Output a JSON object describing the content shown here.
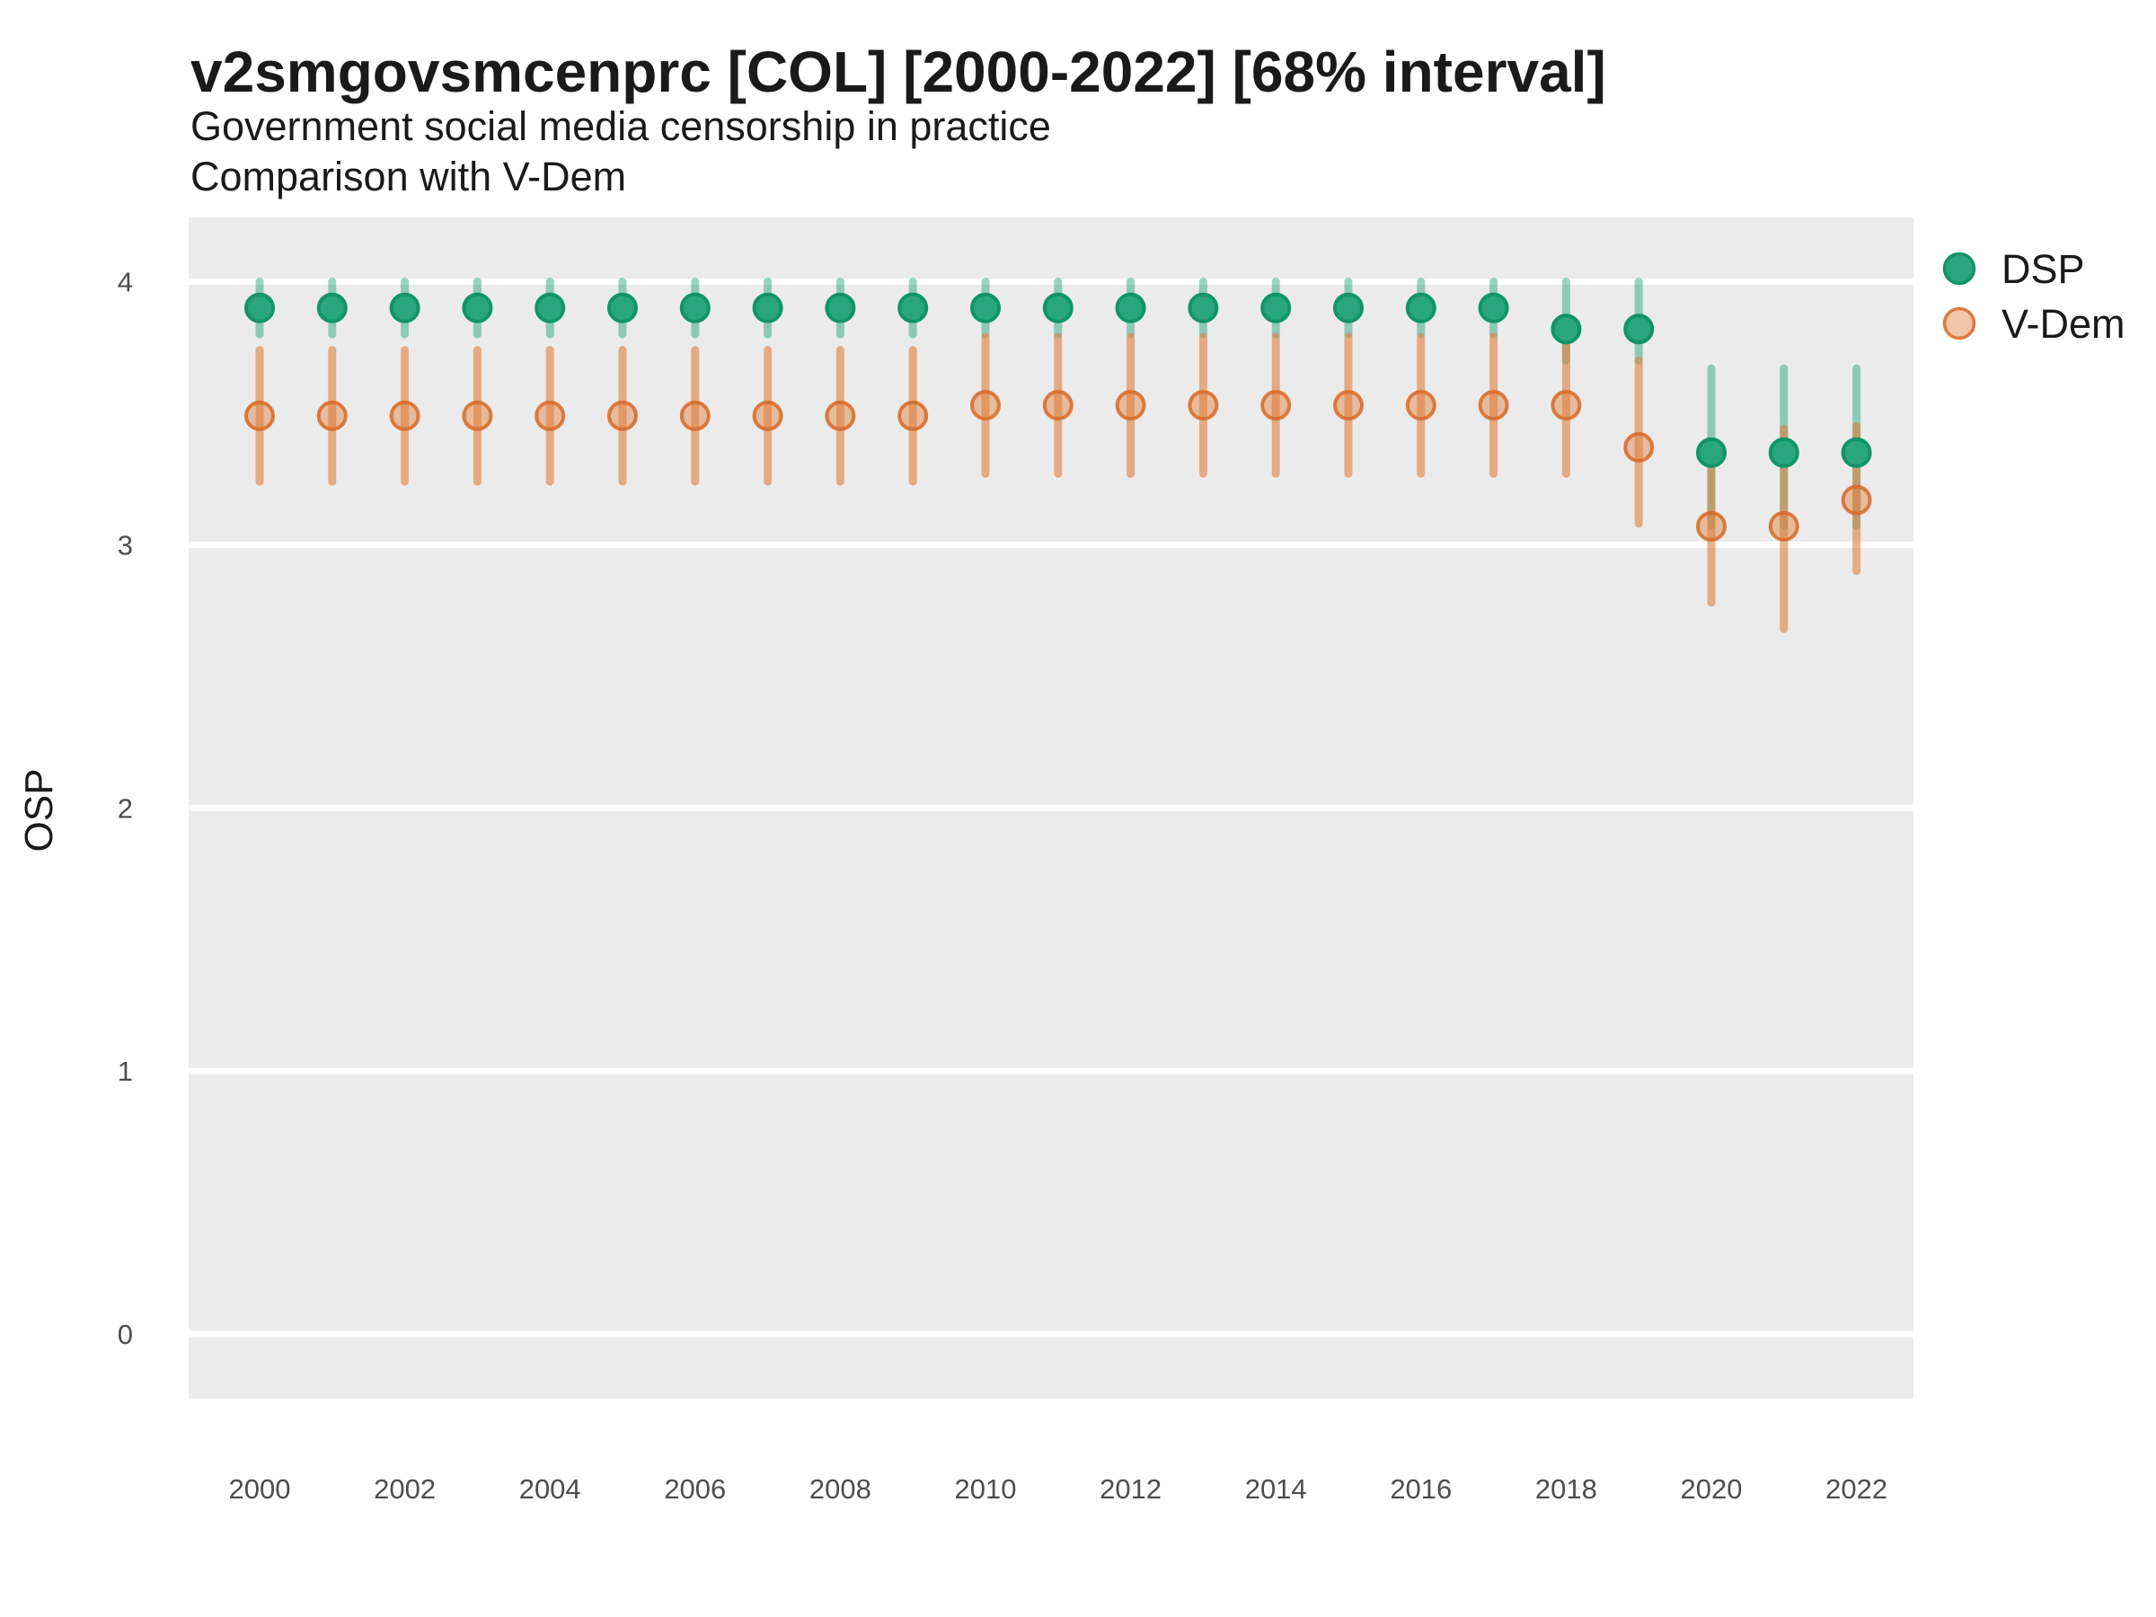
{
  "header": {
    "title": "v2smgovsmcenprc [COL] [2000-2022] [68% interval]",
    "subtitle_line1": "Government social media censorship in practice",
    "subtitle_line2": "Comparison with V-Dem"
  },
  "axes": {
    "y_label": "OSP",
    "y_ticks": [
      0,
      1,
      2,
      3,
      4
    ],
    "x_ticks": [
      2000,
      2002,
      2004,
      2006,
      2008,
      2010,
      2012,
      2014,
      2016,
      2018,
      2020,
      2022
    ]
  },
  "legend": {
    "items": [
      {
        "label": "DSP",
        "series": "DSP"
      },
      {
        "label": "V-Dem",
        "series": "V-Dem"
      }
    ]
  },
  "colors": {
    "dsp_green": "#1DA079",
    "dsp_dot_fill": "#2AA67E",
    "dsp_dot_stroke": "#0F9566",
    "vdem_orange": "#E07E3C",
    "vdem_dot_stroke": "#D86824",
    "panel_gray": "#EBEBEB",
    "gridline_white": "#FFFFFF"
  },
  "chart_data": {
    "type": "scatter",
    "subtype": "pointrange-68pct-interval",
    "title": "v2smgovsmcenprc [COL] [2000-2022] [68% interval]",
    "subtitle": "Government social media censorship in practice — Comparison with V-Dem",
    "xlabel": "",
    "ylabel": "OSP",
    "x": [
      2000,
      2001,
      2002,
      2003,
      2004,
      2005,
      2006,
      2007,
      2008,
      2009,
      2010,
      2011,
      2012,
      2013,
      2014,
      2015,
      2016,
      2017,
      2018,
      2019,
      2020,
      2021,
      2022
    ],
    "series": [
      {
        "name": "DSP",
        "values": [
          3.9,
          3.9,
          3.9,
          3.9,
          3.9,
          3.9,
          3.9,
          3.9,
          3.9,
          3.9,
          3.9,
          3.9,
          3.9,
          3.9,
          3.9,
          3.9,
          3.9,
          3.9,
          3.82,
          3.82,
          3.35,
          3.35,
          3.35
        ],
        "lower": [
          3.8,
          3.8,
          3.8,
          3.8,
          3.8,
          3.8,
          3.8,
          3.8,
          3.8,
          3.8,
          3.8,
          3.8,
          3.8,
          3.8,
          3.8,
          3.8,
          3.8,
          3.8,
          3.7,
          3.7,
          3.07,
          3.07,
          3.07
        ],
        "upper": [
          4.0,
          4.0,
          4.0,
          4.0,
          4.0,
          4.0,
          4.0,
          4.0,
          4.0,
          4.0,
          4.0,
          4.0,
          4.0,
          4.0,
          4.0,
          4.0,
          4.0,
          4.0,
          4.0,
          4.0,
          3.67,
          3.67,
          3.67
        ]
      },
      {
        "name": "V-Dem",
        "values": [
          3.49,
          3.49,
          3.49,
          3.49,
          3.49,
          3.49,
          3.49,
          3.49,
          3.49,
          3.49,
          3.53,
          3.53,
          3.53,
          3.53,
          3.53,
          3.53,
          3.53,
          3.53,
          3.53,
          3.37,
          3.07,
          3.07,
          3.17
        ],
        "lower": [
          3.24,
          3.24,
          3.24,
          3.24,
          3.24,
          3.24,
          3.24,
          3.24,
          3.24,
          3.24,
          3.27,
          3.27,
          3.27,
          3.27,
          3.27,
          3.27,
          3.27,
          3.27,
          3.27,
          3.08,
          2.78,
          2.68,
          2.9
        ],
        "upper": [
          3.74,
          3.74,
          3.74,
          3.74,
          3.74,
          3.74,
          3.74,
          3.74,
          3.74,
          3.74,
          3.79,
          3.79,
          3.79,
          3.79,
          3.79,
          3.79,
          3.79,
          3.79,
          3.79,
          3.7,
          3.35,
          3.44,
          3.45
        ]
      }
    ],
    "ylim": [
      -0.25,
      4.25
    ],
    "xlim": [
      1999.0,
      2022.8
    ],
    "grid": "horizontal-white-on-gray",
    "legend_position": "right-top"
  }
}
